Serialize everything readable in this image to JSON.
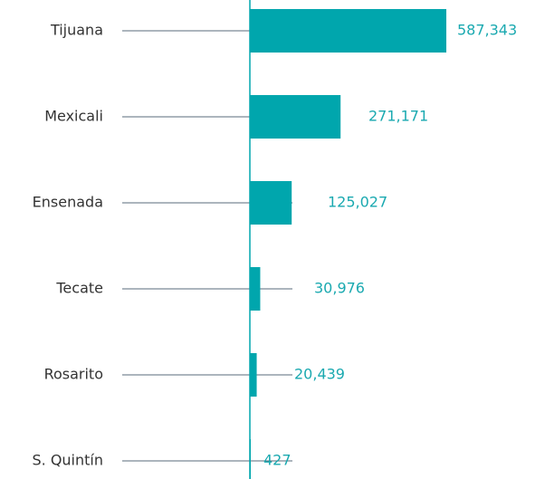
{
  "chart_data": {
    "type": "bar",
    "orientation": "horizontal",
    "categories": [
      "Tijuana",
      "Mexicali",
      "Ensenada",
      "Tecate",
      "Rosarito",
      "S. Quintín"
    ],
    "values": [
      587343,
      271171,
      125027,
      30976,
      20439,
      427
    ],
    "value_labels": [
      "587,343",
      "271,171",
      "125,027",
      "30,976",
      "20,439",
      "427"
    ],
    "color": "#00a6ad"
  }
}
